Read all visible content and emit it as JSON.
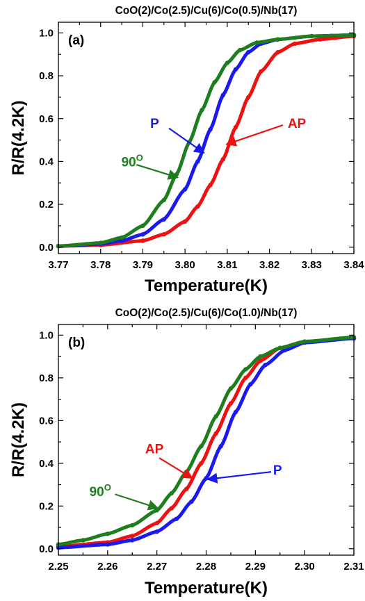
{
  "colors": {
    "AP": "#ee1111",
    "P": "#1a1aee",
    "90": "#1e7d1e"
  },
  "chart_data": [
    {
      "type": "line",
      "title": "CoO(2)/Co(2.5)/Cu(6)/Co(0.5)/Nb(17)",
      "panel_label": "(a)",
      "xlabel": "Temperature(K)",
      "ylabel": "R/R(4.2K)",
      "xlim": [
        3.77,
        3.84
      ],
      "ylim": [
        -0.03,
        1.05
      ],
      "xticks": [
        "3.77",
        "3.78",
        "3.79",
        "3.80",
        "3.81",
        "3.82",
        "3.83",
        "3.84"
      ],
      "yticks": [
        "0.0",
        "0.2",
        "0.4",
        "0.6",
        "0.8",
        "1.0"
      ],
      "series": [
        {
          "name": "AP",
          "x": [
            3.77,
            3.78,
            3.79,
            3.795,
            3.8,
            3.803,
            3.806,
            3.809,
            3.812,
            3.815,
            3.818,
            3.822,
            3.826,
            3.832,
            3.84
          ],
          "y": [
            0.005,
            0.01,
            0.03,
            0.06,
            0.12,
            0.19,
            0.29,
            0.41,
            0.56,
            0.7,
            0.82,
            0.91,
            0.95,
            0.97,
            0.985
          ]
        },
        {
          "name": "P",
          "x": [
            3.77,
            3.78,
            3.785,
            3.79,
            3.795,
            3.8,
            3.803,
            3.806,
            3.809,
            3.812,
            3.815,
            3.818,
            3.822,
            3.83,
            3.84
          ],
          "y": [
            0.005,
            0.015,
            0.03,
            0.06,
            0.13,
            0.27,
            0.4,
            0.55,
            0.71,
            0.83,
            0.91,
            0.95,
            0.97,
            0.985,
            0.99
          ]
        },
        {
          "name": "90",
          "x": [
            3.77,
            3.78,
            3.785,
            3.79,
            3.795,
            3.798,
            3.801,
            3.804,
            3.807,
            3.81,
            3.813,
            3.817,
            3.822,
            3.83,
            3.84
          ],
          "y": [
            0.005,
            0.02,
            0.045,
            0.1,
            0.22,
            0.34,
            0.49,
            0.64,
            0.77,
            0.86,
            0.92,
            0.955,
            0.97,
            0.985,
            0.99
          ]
        }
      ],
      "annotations": [
        {
          "label": "P",
          "series": "P",
          "text_x": 3.7928,
          "text_y": 0.58,
          "from_x": 3.7962,
          "from_y": 0.555,
          "to_x": 3.8045,
          "to_y": 0.44
        },
        {
          "label": "AP",
          "series": "AP",
          "text_x": 3.8265,
          "text_y": 0.58,
          "from_x": 3.8232,
          "from_y": 0.57,
          "to_x": 3.8098,
          "to_y": 0.48
        },
        {
          "label": "90",
          "sup": "O",
          "series": "90",
          "text_x": 3.7875,
          "text_y": 0.4,
          "from_x": 3.7885,
          "from_y": 0.385,
          "to_x": 3.7983,
          "to_y": 0.325
        }
      ]
    },
    {
      "type": "line",
      "title": "CoO(2)/Co(2.5)/Cu(6)/Co(1.0)/Nb(17)",
      "panel_label": "(b)",
      "xlabel": "Temperature(K)",
      "ylabel": "R/R(4.2K)",
      "xlim": [
        2.25,
        2.31
      ],
      "ylim": [
        -0.03,
        1.05
      ],
      "xticks": [
        "2.25",
        "2.26",
        "2.27",
        "2.28",
        "2.29",
        "2.30",
        "2.31"
      ],
      "yticks": [
        "0.0",
        "0.2",
        "0.4",
        "0.6",
        "0.8",
        "1.0"
      ],
      "series": [
        {
          "name": "AP",
          "x": [
            2.25,
            2.26,
            2.265,
            2.27,
            2.273,
            2.276,
            2.279,
            2.282,
            2.285,
            2.288,
            2.291,
            2.295,
            2.3,
            2.31
          ],
          "y": [
            0.01,
            0.03,
            0.06,
            0.12,
            0.19,
            0.28,
            0.4,
            0.54,
            0.68,
            0.8,
            0.88,
            0.94,
            0.97,
            0.985
          ]
        },
        {
          "name": "P",
          "x": [
            2.25,
            2.26,
            2.265,
            2.27,
            2.274,
            2.277,
            2.28,
            2.283,
            2.286,
            2.289,
            2.292,
            2.296,
            2.3,
            2.31
          ],
          "y": [
            0.005,
            0.02,
            0.04,
            0.08,
            0.14,
            0.22,
            0.33,
            0.48,
            0.64,
            0.77,
            0.86,
            0.93,
            0.965,
            0.985
          ]
        },
        {
          "name": "90",
          "x": [
            2.25,
            2.255,
            2.26,
            2.265,
            2.27,
            2.273,
            2.276,
            2.279,
            2.282,
            2.285,
            2.288,
            2.291,
            2.295,
            2.3,
            2.31
          ],
          "y": [
            0.02,
            0.04,
            0.07,
            0.11,
            0.18,
            0.26,
            0.36,
            0.48,
            0.62,
            0.75,
            0.84,
            0.9,
            0.94,
            0.97,
            0.99
          ]
        }
      ],
      "annotations": [
        {
          "label": "AP",
          "series": "AP",
          "text_x": 2.2695,
          "text_y": 0.47,
          "from_x": 2.2705,
          "from_y": 0.425,
          "to_x": 2.2772,
          "to_y": 0.33
        },
        {
          "label": "P",
          "series": "P",
          "text_x": 2.2945,
          "text_y": 0.37,
          "from_x": 2.2932,
          "from_y": 0.36,
          "to_x": 2.2803,
          "to_y": 0.325
        },
        {
          "label": "90",
          "sup": "O",
          "series": "90",
          "text_x": 2.2585,
          "text_y": 0.27,
          "from_x": 2.2615,
          "from_y": 0.255,
          "to_x": 2.2702,
          "to_y": 0.19
        }
      ]
    }
  ]
}
